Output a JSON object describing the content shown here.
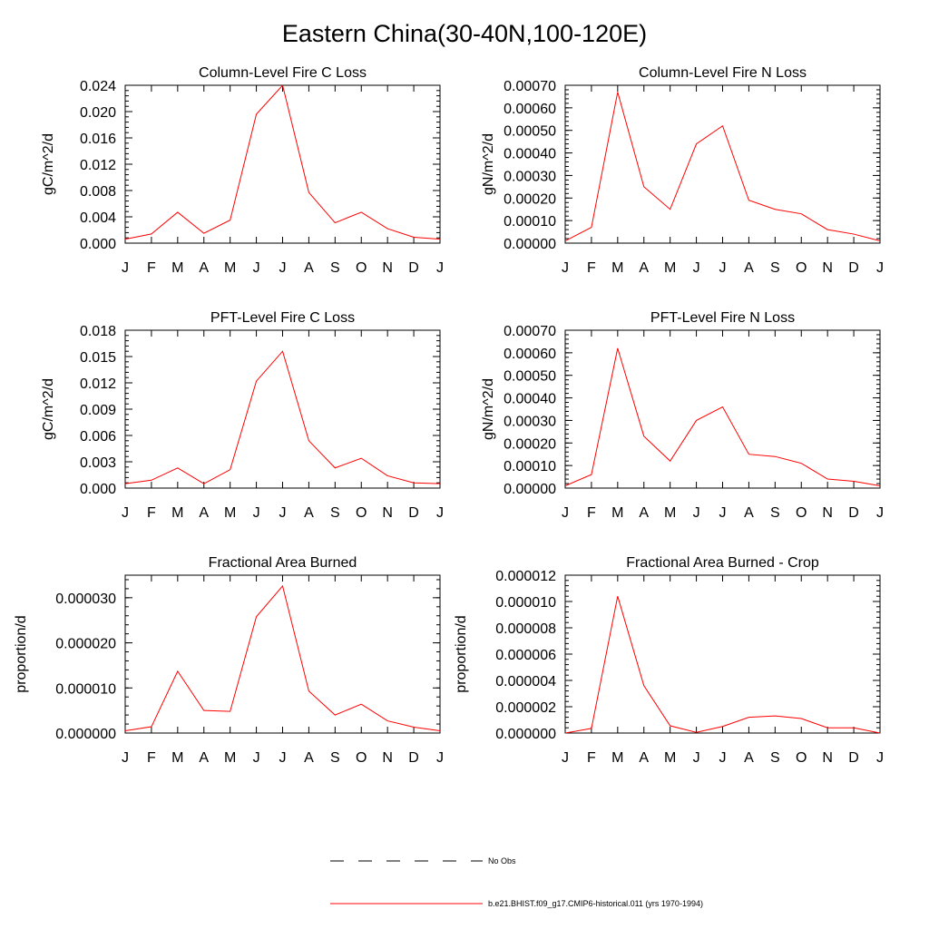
{
  "page": {
    "title": "Eastern China(30-40N,100-120E)"
  },
  "month_labels": [
    "J",
    "F",
    "M",
    "A",
    "M",
    "J",
    "J",
    "A",
    "S",
    "O",
    "N",
    "D",
    "J"
  ],
  "legend": {
    "items": [
      {
        "label": "No Obs",
        "style": "dashed",
        "color": "#000000"
      },
      {
        "label": "b.e21.BHIST.f09_g17.CMIP6-historical.011 (yrs 1970-1994)",
        "style": "solid",
        "color": "#ff0000"
      }
    ]
  },
  "chart_data": [
    {
      "type": "line",
      "title": "Column-Level Fire C Loss",
      "ylabel": "gC/m^2/d",
      "ylim": [
        0,
        0.024
      ],
      "yticks": [
        0,
        0.004,
        0.008,
        0.012,
        0.016,
        0.02,
        0.024
      ],
      "ytick_labels": [
        "0.000",
        "0.004",
        "0.008",
        "0.012",
        "0.016",
        "0.020",
        "0.024"
      ],
      "categories": [
        "J",
        "F",
        "M",
        "A",
        "M",
        "J",
        "J",
        "A",
        "S",
        "O",
        "N",
        "D",
        "J"
      ],
      "series": [
        {
          "color": "#ff0000",
          "values": [
            0.0006,
            0.0014,
            0.0047,
            0.0015,
            0.0035,
            0.0196,
            0.024,
            0.0077,
            0.0031,
            0.0047,
            0.0022,
            0.0009,
            0.0006
          ]
        }
      ]
    },
    {
      "type": "line",
      "title": "Column-Level Fire N Loss",
      "ylabel": "gN/m^2/d",
      "ylim": [
        0,
        0.0007
      ],
      "yticks": [
        0,
        0.0001,
        0.0002,
        0.0003,
        0.0004,
        0.0005,
        0.0006,
        0.0007
      ],
      "ytick_labels": [
        "0.00000",
        "0.00010",
        "0.00020",
        "0.00030",
        "0.00040",
        "0.00050",
        "0.00060",
        "0.00070"
      ],
      "categories": [
        "J",
        "F",
        "M",
        "A",
        "M",
        "J",
        "J",
        "A",
        "S",
        "O",
        "N",
        "D",
        "J"
      ],
      "series": [
        {
          "color": "#ff0000",
          "values": [
            1e-05,
            7e-05,
            0.00067,
            0.00025,
            0.00015,
            0.00044,
            0.00052,
            0.00019,
            0.00015,
            0.00013,
            6e-05,
            4e-05,
            1e-05
          ]
        }
      ]
    },
    {
      "type": "line",
      "title": "PFT-Level Fire C Loss",
      "ylabel": "gC/m^2/d",
      "ylim": [
        0,
        0.018
      ],
      "yticks": [
        0,
        0.003,
        0.006,
        0.009,
        0.012,
        0.015,
        0.018
      ],
      "ytick_labels": [
        "0.000",
        "0.003",
        "0.006",
        "0.009",
        "0.012",
        "0.015",
        "0.018"
      ],
      "categories": [
        "J",
        "F",
        "M",
        "A",
        "M",
        "J",
        "J",
        "A",
        "S",
        "O",
        "N",
        "D",
        "J"
      ],
      "series": [
        {
          "color": "#ff0000",
          "values": [
            0.0005,
            0.0009,
            0.0023,
            0.0005,
            0.0021,
            0.0122,
            0.0156,
            0.0054,
            0.0023,
            0.0034,
            0.0014,
            0.0006,
            0.0005
          ]
        }
      ]
    },
    {
      "type": "line",
      "title": "PFT-Level Fire N Loss",
      "ylabel": "gN/m^2/d",
      "ylim": [
        0,
        0.0007
      ],
      "yticks": [
        0,
        0.0001,
        0.0002,
        0.0003,
        0.0004,
        0.0005,
        0.0006,
        0.0007
      ],
      "ytick_labels": [
        "0.00000",
        "0.00010",
        "0.00020",
        "0.00030",
        "0.00040",
        "0.00050",
        "0.00060",
        "0.00070"
      ],
      "categories": [
        "J",
        "F",
        "M",
        "A",
        "M",
        "J",
        "J",
        "A",
        "S",
        "O",
        "N",
        "D",
        "J"
      ],
      "series": [
        {
          "color": "#ff0000",
          "values": [
            1e-05,
            6e-05,
            0.00062,
            0.00023,
            0.00012,
            0.0003,
            0.00036,
            0.00015,
            0.00014,
            0.00011,
            4e-05,
            3e-05,
            1e-05
          ]
        }
      ]
    },
    {
      "type": "line",
      "title": "Fractional Area Burned",
      "ylabel": "proportion/d",
      "ylim": [
        0,
        3.5e-05
      ],
      "yticks": [
        0,
        1e-05,
        2e-05,
        3e-05
      ],
      "ytick_labels": [
        "0.000000",
        "0.000010",
        "0.000020",
        "0.000030"
      ],
      "categories": [
        "J",
        "F",
        "M",
        "A",
        "M",
        "J",
        "J",
        "A",
        "S",
        "O",
        "N",
        "D",
        "J"
      ],
      "series": [
        {
          "color": "#ff0000",
          "values": [
            5e-07,
            1.4e-06,
            1.37e-05,
            5e-06,
            4.8e-06,
            2.58e-05,
            3.26e-05,
            9.3e-06,
            4e-06,
            6.4e-06,
            2.7e-06,
            1.3e-06,
            5e-07
          ]
        }
      ]
    },
    {
      "type": "line",
      "title": "Fractional Area Burned - Crop",
      "ylabel": "proportion/d",
      "ylim": [
        0,
        1.2e-05
      ],
      "yticks": [
        0,
        2e-06,
        4e-06,
        6e-06,
        8e-06,
        1e-05,
        1.2e-05
      ],
      "ytick_labels": [
        "0.000000",
        "0.000002",
        "0.000004",
        "0.000006",
        "0.000008",
        "0.000010",
        "0.000012"
      ],
      "categories": [
        "J",
        "F",
        "M",
        "A",
        "M",
        "J",
        "J",
        "A",
        "S",
        "O",
        "N",
        "D",
        "J"
      ],
      "series": [
        {
          "color": "#ff0000",
          "values": [
            0.0,
            3.5e-07,
            1.04e-05,
            3.6e-06,
            5.5e-07,
            5e-08,
            5e-07,
            1.2e-06,
            1.3e-06,
            1.1e-06,
            4e-07,
            4e-07,
            0.0
          ]
        }
      ]
    }
  ]
}
